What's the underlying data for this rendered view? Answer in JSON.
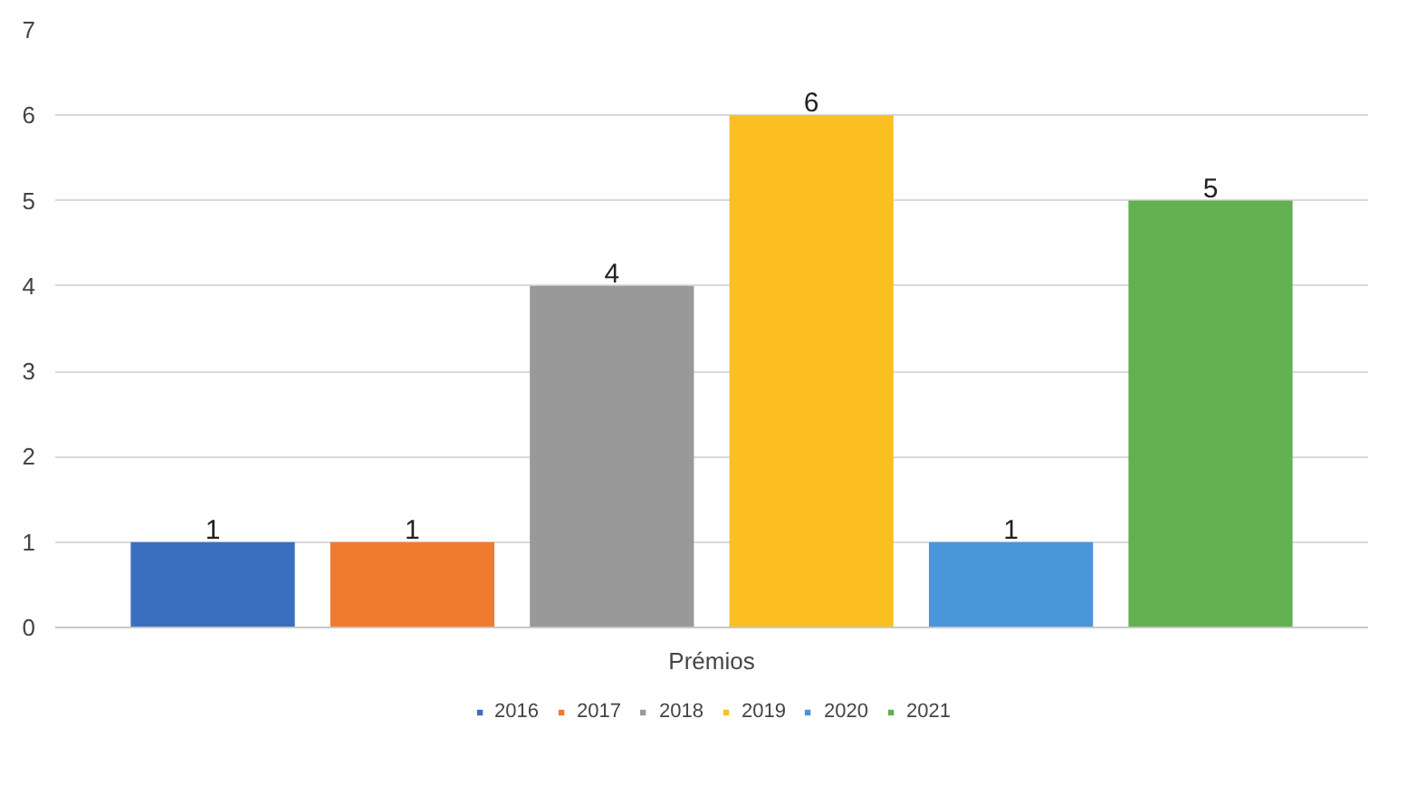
{
  "chart_data": {
    "type": "bar",
    "categories": [
      "Prémios"
    ],
    "series": [
      {
        "name": "2016",
        "color": "#3a6fc0",
        "values": [
          1
        ]
      },
      {
        "name": "2017",
        "color": "#f07b30",
        "values": [
          1
        ]
      },
      {
        "name": "2018",
        "color": "#999999",
        "values": [
          4
        ]
      },
      {
        "name": "2019",
        "color": "#fbbf22",
        "values": [
          6
        ]
      },
      {
        "name": "2020",
        "color": "#4a96d8",
        "values": [
          1
        ]
      },
      {
        "name": "2021",
        "color": "#62b04f",
        "values": [
          5
        ]
      }
    ],
    "ylim": [
      0,
      7
    ],
    "yticks": [
      0,
      1,
      2,
      3,
      4,
      5,
      6,
      7
    ],
    "grid": "y",
    "legend": "bottom",
    "data_labels": true
  }
}
